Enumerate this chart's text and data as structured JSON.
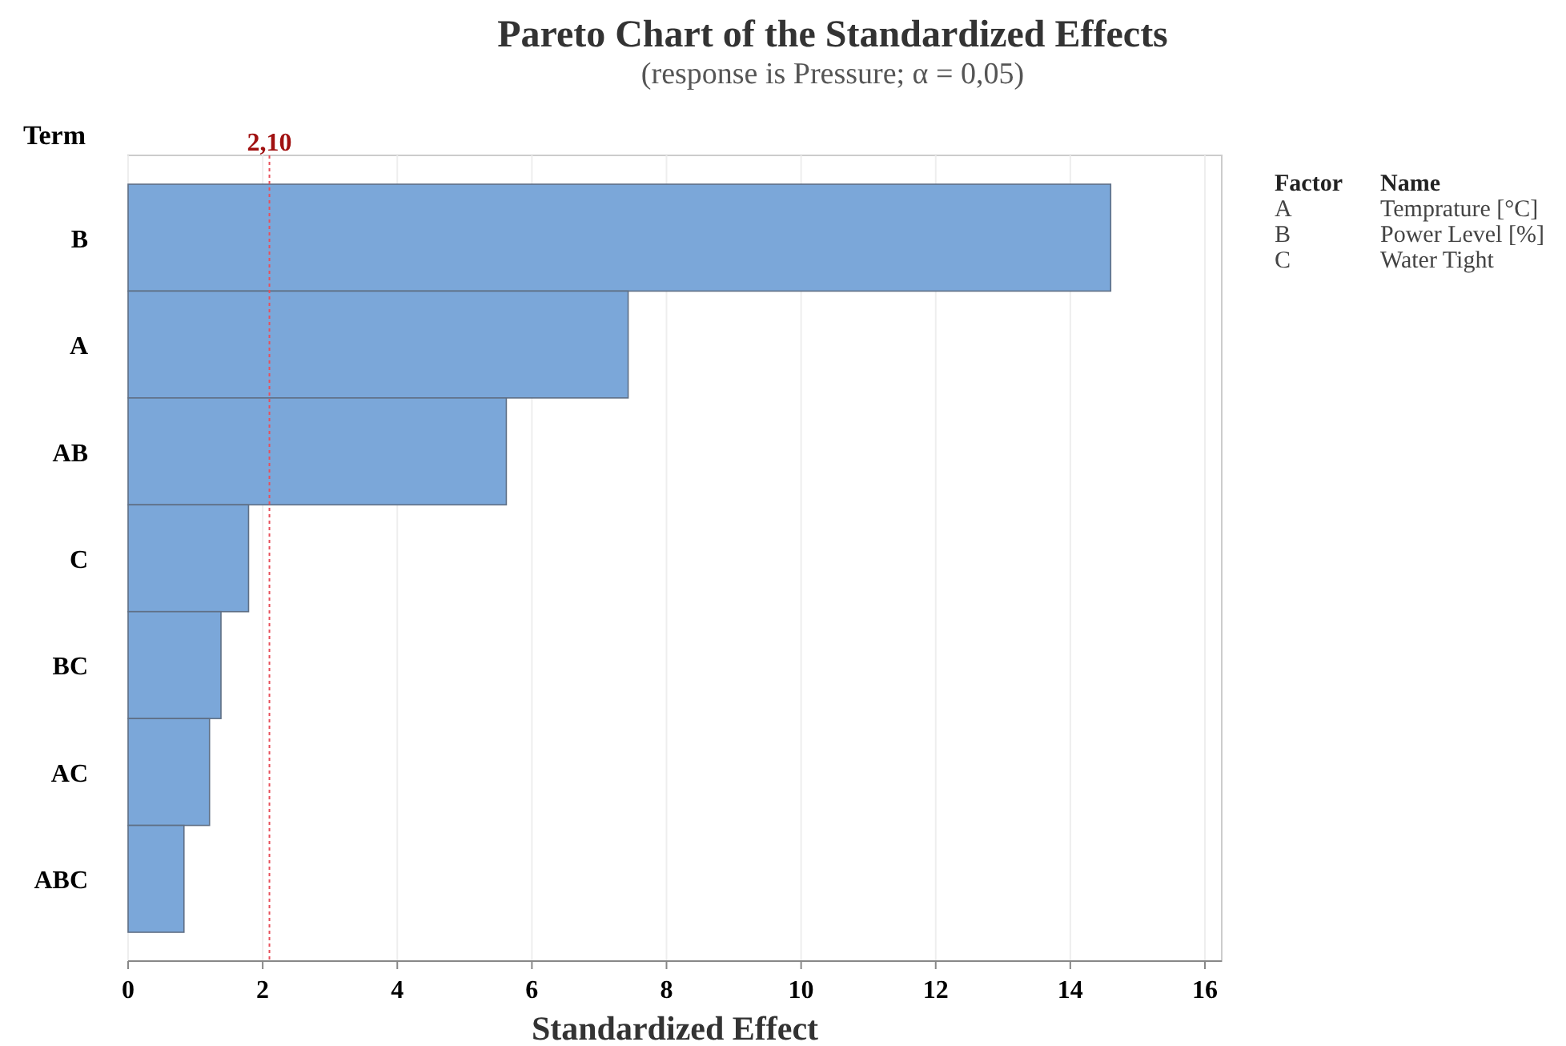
{
  "chart_data": {
    "type": "bar",
    "orientation": "horizontal",
    "title": "Pareto Chart of the Standardized Effects",
    "subtitle": "(response is Pressure; α = 0,05)",
    "xlabel": "Standardized Effect",
    "ylabel": "Term",
    "categories": [
      "B",
      "A",
      "AB",
      "C",
      "BC",
      "AC",
      "ABC"
    ],
    "values": [
      14.6,
      7.43,
      5.62,
      1.79,
      1.38,
      1.21,
      0.83
    ],
    "color": "#7ba7d9",
    "xlim": [
      0,
      16.25
    ],
    "xticks": [
      0,
      2,
      4,
      6,
      8,
      10,
      12,
      14,
      16
    ],
    "grid": "x",
    "ref_lines": [
      {
        "axis": "x",
        "value": 2.1,
        "label": "2,10",
        "color": "#e8505b",
        "line_style": "dotted"
      }
    ],
    "annotations": [
      "Factor",
      "Name",
      "A",
      "Temprature [°C]",
      "B",
      "Power Level [%]",
      "C",
      "Water Tight"
    ]
  }
}
